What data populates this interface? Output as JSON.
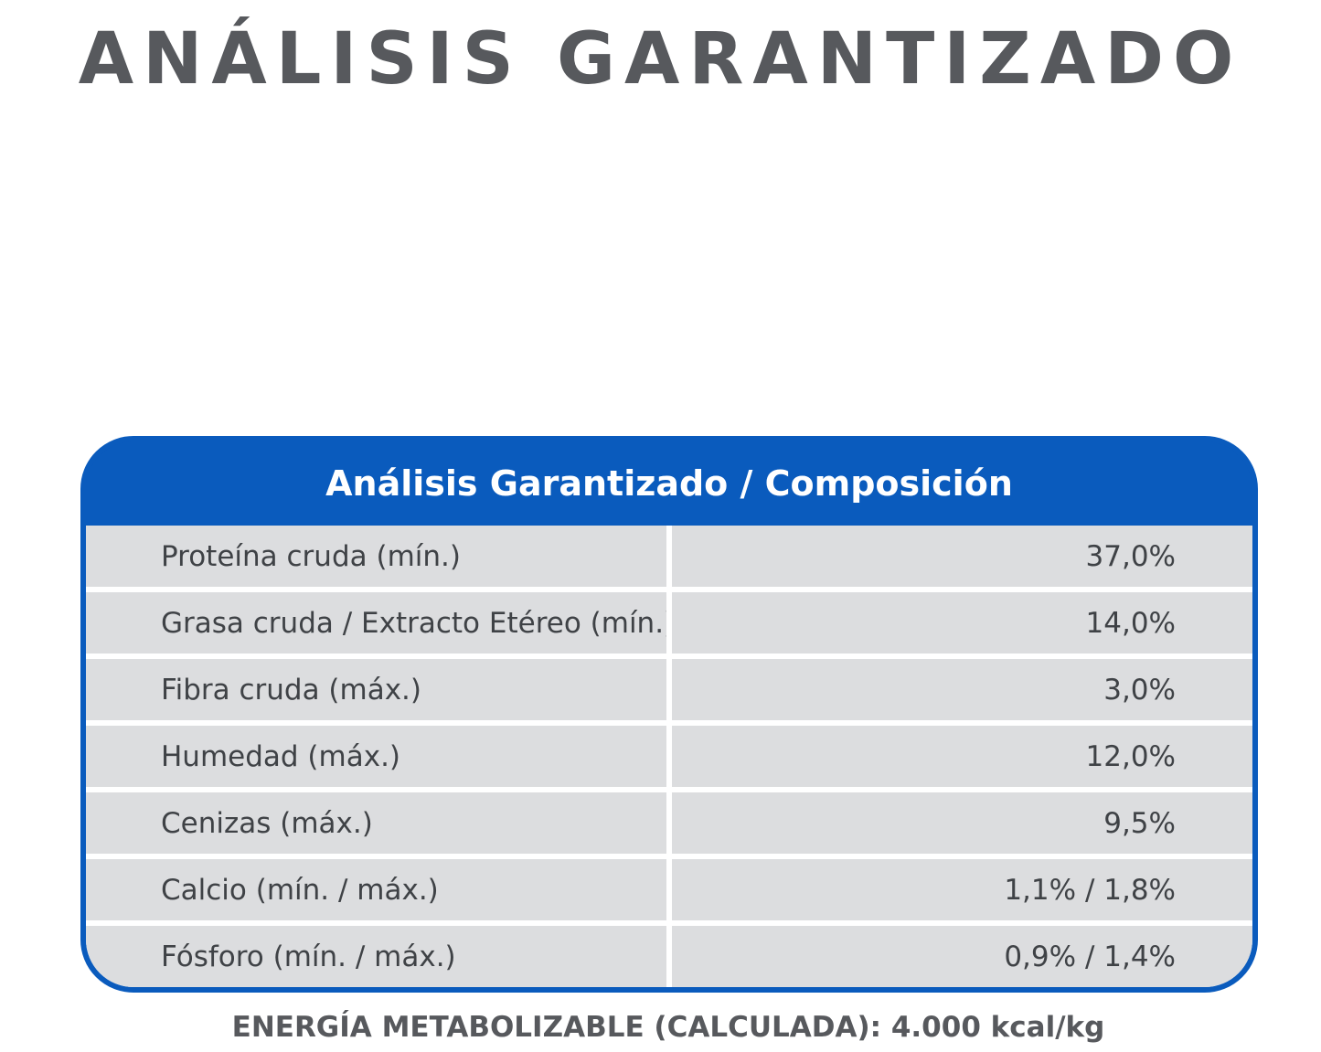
{
  "title": "ANÁLISIS GARANTIZADO",
  "colors": {
    "title_text": "#57595d",
    "panel_blue": "#0a5bbd",
    "row_background": "#dcdddf",
    "cell_text": "#3f4246"
  },
  "table": {
    "header": "Análisis Garantizado / Composición",
    "rows": [
      {
        "label": "Proteína cruda (mín.)",
        "value": "37,0%"
      },
      {
        "label": "Grasa cruda / Extracto Etéreo (mín.)",
        "value": "14,0%"
      },
      {
        "label": "Fibra cruda (máx.)",
        "value": "3,0%"
      },
      {
        "label": "Humedad (máx.)",
        "value": "12,0%"
      },
      {
        "label": "Cenizas (máx.)",
        "value": "9,5%"
      },
      {
        "label": "Calcio (mín. / máx.)",
        "value": "1,1% / 1,8%"
      },
      {
        "label": "Fósforo (mín. / máx.)",
        "value": "0,9% / 1,4%"
      }
    ]
  },
  "footer": "ENERGÍA METABOLIZABLE (CALCULADA): 4.000 kcal/kg"
}
